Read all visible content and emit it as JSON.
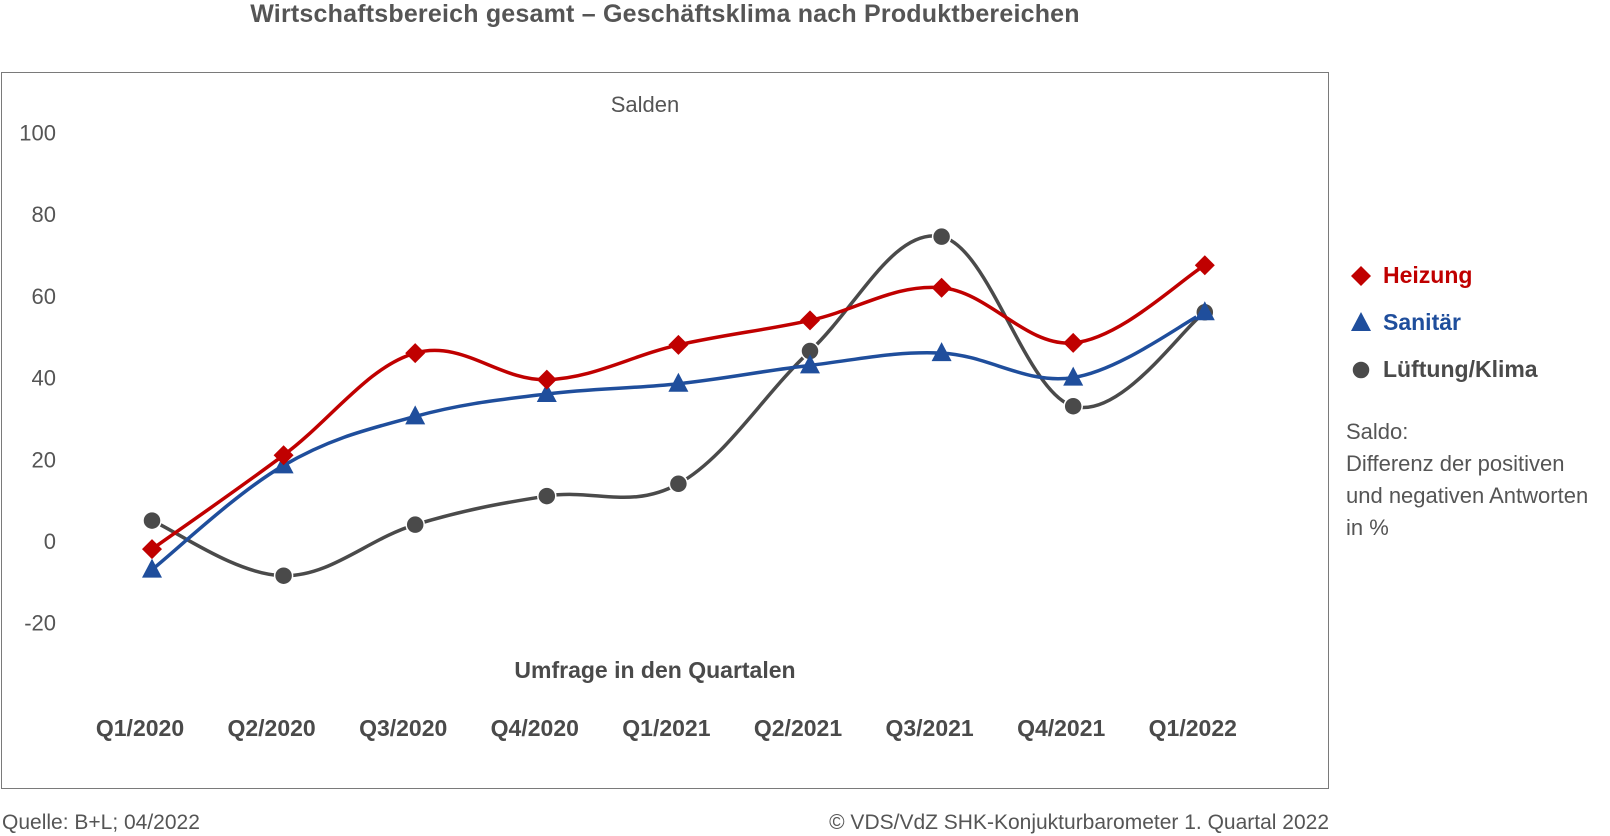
{
  "chart_data": {
    "type": "line",
    "title": "Wirtschaftsbereich gesamt – Geschäftsklima nach Produktbereichen",
    "ylabel": "Salden",
    "xlabel": "Umfrage in den Quartalen",
    "categories": [
      "Q1/2020",
      "Q2/2020",
      "Q3/2020",
      "Q4/2020",
      "Q1/2021",
      "Q2/2021",
      "Q3/2021",
      "Q4/2021",
      "Q1/2022"
    ],
    "ylim": [
      -20,
      100
    ],
    "yticks": [
      100,
      80,
      60,
      40,
      20,
      0,
      -20
    ],
    "grid": false,
    "legend_position": "right",
    "series": [
      {
        "name": "Heizung",
        "color": "#c00000",
        "marker": "diamond",
        "values": [
          -2,
          21,
          46,
          39.5,
          48,
          54,
          62,
          48.5,
          67.5
        ]
      },
      {
        "name": "Sanitär",
        "color": "#1f4e9c",
        "marker": "triangle",
        "values": [
          -7,
          18.5,
          30.5,
          36,
          38.5,
          43,
          46,
          40,
          56
        ]
      },
      {
        "name": "Lüftung/Klima",
        "color": "#4a4a4a",
        "marker": "circle",
        "values": [
          5,
          -8.5,
          4,
          11,
          14,
          46.5,
          74.5,
          33,
          56
        ]
      }
    ],
    "note": [
      "Saldo:",
      "Differenz der positiven",
      "und negativen Antworten",
      "in %"
    ]
  },
  "footer": {
    "source": "Quelle: B+L; 04/2022",
    "copyright": "© VDS/VdZ SHK-Konjukturbarometer 1. Quartal 2022"
  }
}
